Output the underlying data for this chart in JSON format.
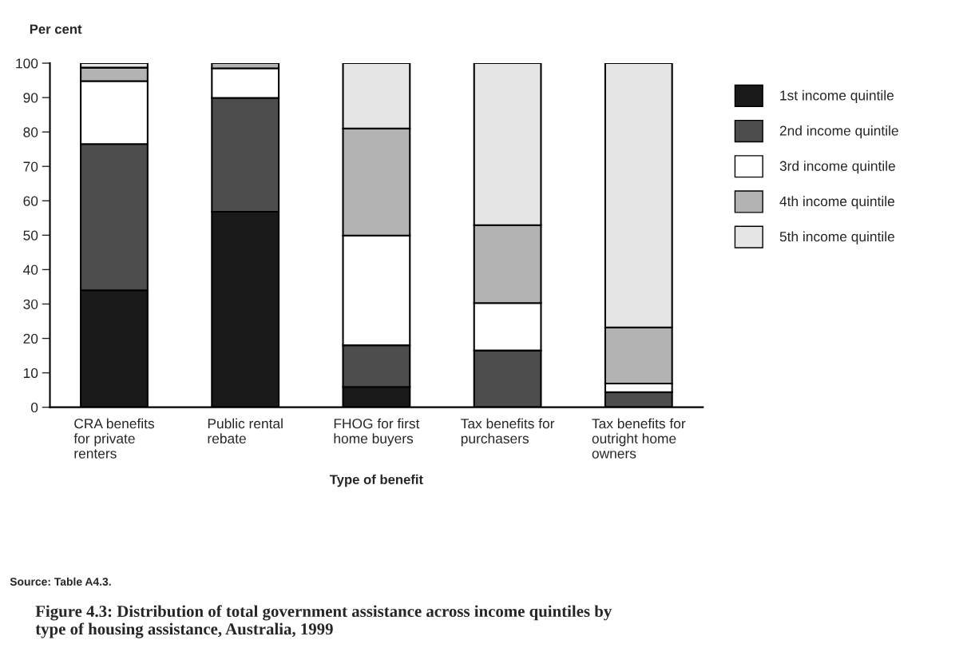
{
  "chart_data": {
    "type": "bar",
    "stacked": true,
    "title": "Figure 4.3: Distribution of total government assistance across income quintiles by type of housing assistance, Australia, 1999",
    "ylabel": "Per cent",
    "xlabel": "Type of benefit",
    "categories": [
      "CRA benefits\nfor private\nrenters",
      "Public rental\nrebate",
      "FHOG for first\nhome buyers",
      "Tax benefits for\npurchasers",
      "Tax benefits for\noutright home\nowners"
    ],
    "series": [
      {
        "name": "1st income quintile",
        "color": "#1a1a1a",
        "values": [
          34.0,
          56.8,
          5.9,
          null,
          null
        ]
      },
      {
        "name": "2nd income quintile",
        "color": "#4d4d4d",
        "values": [
          42.5,
          33.1,
          12.1,
          16.5,
          4.4
        ]
      },
      {
        "name": "3rd income quintile",
        "color": "#ffffff",
        "values": [
          18.3,
          8.6,
          31.9,
          13.8,
          2.5
        ]
      },
      {
        "name": "4th income quintile",
        "color": "#b3b3b3",
        "values": [
          3.9,
          1.5,
          31.1,
          22.6,
          16.3
        ]
      },
      {
        "name": "5th income quintile",
        "color": "#e5e5e5",
        "values": [
          1.3,
          null,
          19.0,
          47.1,
          76.8
        ]
      }
    ],
    "ylim": [
      0,
      100
    ],
    "yticks": [
      0,
      10,
      20,
      30,
      40,
      50,
      60,
      70,
      80,
      90,
      100
    ],
    "legend": "right",
    "grid": false,
    "annotations": [
      "Source: Table A4.3."
    ]
  }
}
